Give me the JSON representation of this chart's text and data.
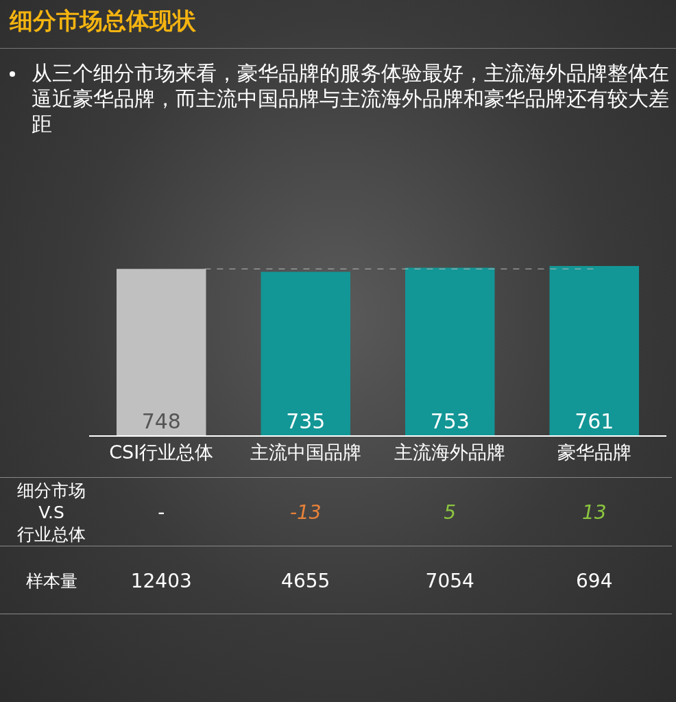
{
  "chart_data": {
    "type": "bar",
    "title": "细分市场总体现状",
    "subtitle": "从三个细分市场来看，豪华品牌的服务体验最好，主流海外品牌整体在逼近豪华品牌，而主流中国品牌与主流海外品牌和豪华品牌还有较大差距",
    "categories": [
      "CSI行业总体",
      "主流中国品牌",
      "主流海外品牌",
      "豪华品牌"
    ],
    "values": [
      748,
      735,
      753,
      761
    ],
    "colors": [
      "#c0c0c0",
      "#139696",
      "#139696",
      "#139696"
    ],
    "data_labels": true,
    "tick_labels": "x",
    "grid": false,
    "ref_lines": [
      {
        "axis": "y",
        "value": 748,
        "color": "#bbbbbb",
        "line_style": "dashed"
      }
    ],
    "annotations": [
      "细分市场\nV.S\n行业总体",
      "-",
      "-13",
      "5",
      "13",
      "样本量",
      "12403",
      "4655",
      "7054",
      "694"
    ]
  }
}
